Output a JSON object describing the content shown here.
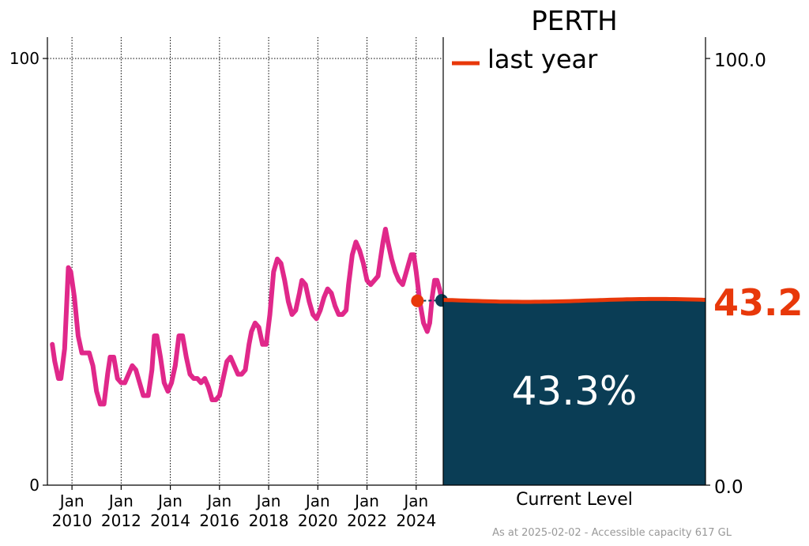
{
  "chart_data": [
    {
      "type": "line",
      "title": "",
      "xlabel": "",
      "ylabel": "",
      "ylim": [
        0,
        100
      ],
      "xlim": [
        2009.0,
        2025.1
      ],
      "y_ticks": [
        "0",
        "100"
      ],
      "x_tick_labels": [
        {
          "x": 2010,
          "top": "Jan",
          "bottom": "2010"
        },
        {
          "x": 2012,
          "top": "Jan",
          "bottom": "2012"
        },
        {
          "x": 2014,
          "top": "Jan",
          "bottom": "2014"
        },
        {
          "x": 2016,
          "top": "Jan",
          "bottom": "2016"
        },
        {
          "x": 2018,
          "top": "Jan",
          "bottom": "2018"
        },
        {
          "x": 2020,
          "top": "Jan",
          "bottom": "2020"
        },
        {
          "x": 2022,
          "top": "Jan",
          "bottom": "2022"
        },
        {
          "x": 2024,
          "top": "Jan",
          "bottom": "2024"
        }
      ],
      "series": [
        {
          "name": "storage",
          "color": "#e0288a",
          "points": [
            [
              2009.2,
              33
            ],
            [
              2009.3,
              29
            ],
            [
              2009.45,
              25
            ],
            [
              2009.55,
              25
            ],
            [
              2009.7,
              32
            ],
            [
              2009.78,
              42
            ],
            [
              2009.85,
              51
            ],
            [
              2009.95,
              50
            ],
            [
              2010.1,
              44
            ],
            [
              2010.25,
              35
            ],
            [
              2010.4,
              31
            ],
            [
              2010.55,
              31
            ],
            [
              2010.7,
              31
            ],
            [
              2010.85,
              28
            ],
            [
              2011.0,
              22
            ],
            [
              2011.15,
              19
            ],
            [
              2011.3,
              19
            ],
            [
              2011.45,
              26
            ],
            [
              2011.55,
              30
            ],
            [
              2011.7,
              30
            ],
            [
              2011.85,
              25
            ],
            [
              2012.0,
              24
            ],
            [
              2012.15,
              24
            ],
            [
              2012.3,
              26
            ],
            [
              2012.45,
              28
            ],
            [
              2012.6,
              27
            ],
            [
              2012.75,
              24
            ],
            [
              2012.9,
              21
            ],
            [
              2013.1,
              21
            ],
            [
              2013.25,
              27
            ],
            [
              2013.35,
              35
            ],
            [
              2013.45,
              35
            ],
            [
              2013.6,
              30
            ],
            [
              2013.75,
              24
            ],
            [
              2013.9,
              22
            ],
            [
              2014.05,
              24
            ],
            [
              2014.2,
              28
            ],
            [
              2014.35,
              35
            ],
            [
              2014.5,
              35
            ],
            [
              2014.65,
              30
            ],
            [
              2014.8,
              26
            ],
            [
              2014.95,
              25
            ],
            [
              2015.1,
              25
            ],
            [
              2015.25,
              24
            ],
            [
              2015.4,
              25
            ],
            [
              2015.55,
              23
            ],
            [
              2015.7,
              20
            ],
            [
              2015.85,
              20
            ],
            [
              2016.0,
              21
            ],
            [
              2016.15,
              25
            ],
            [
              2016.3,
              29
            ],
            [
              2016.45,
              30
            ],
            [
              2016.6,
              28
            ],
            [
              2016.75,
              26
            ],
            [
              2016.9,
              26
            ],
            [
              2017.05,
              27
            ],
            [
              2017.2,
              33
            ],
            [
              2017.3,
              36
            ],
            [
              2017.45,
              38
            ],
            [
              2017.6,
              37
            ],
            [
              2017.75,
              33
            ],
            [
              2017.9,
              33
            ],
            [
              2018.05,
              40
            ],
            [
              2018.2,
              50
            ],
            [
              2018.35,
              53
            ],
            [
              2018.5,
              52
            ],
            [
              2018.65,
              48
            ],
            [
              2018.8,
              43
            ],
            [
              2018.95,
              40
            ],
            [
              2019.1,
              41
            ],
            [
              2019.25,
              45
            ],
            [
              2019.35,
              48
            ],
            [
              2019.5,
              47
            ],
            [
              2019.65,
              43
            ],
            [
              2019.8,
              40
            ],
            [
              2019.95,
              39
            ],
            [
              2020.1,
              41
            ],
            [
              2020.25,
              44
            ],
            [
              2020.4,
              46
            ],
            [
              2020.55,
              45
            ],
            [
              2020.7,
              42
            ],
            [
              2020.85,
              40
            ],
            [
              2021.0,
              40
            ],
            [
              2021.15,
              41
            ],
            [
              2021.25,
              47
            ],
            [
              2021.4,
              54
            ],
            [
              2021.55,
              57
            ],
            [
              2021.7,
              55
            ],
            [
              2021.85,
              52
            ],
            [
              2022.0,
              48
            ],
            [
              2022.15,
              47
            ],
            [
              2022.3,
              48
            ],
            [
              2022.45,
              49
            ],
            [
              2022.55,
              53
            ],
            [
              2022.65,
              57
            ],
            [
              2022.75,
              60
            ],
            [
              2022.85,
              57
            ],
            [
              2023.0,
              53
            ],
            [
              2023.15,
              50
            ],
            [
              2023.3,
              48
            ],
            [
              2023.45,
              47
            ],
            [
              2023.55,
              49
            ],
            [
              2023.7,
              52
            ],
            [
              2023.8,
              54
            ],
            [
              2023.9,
              54
            ],
            [
              2024.0,
              50
            ],
            [
              2024.15,
              43
            ],
            [
              2024.3,
              38
            ],
            [
              2024.45,
              36
            ],
            [
              2024.55,
              38
            ],
            [
              2024.65,
              44
            ],
            [
              2024.75,
              48
            ],
            [
              2024.85,
              48
            ],
            [
              2024.95,
              46
            ],
            [
              2025.05,
              43.3
            ]
          ]
        }
      ],
      "markers": [
        {
          "name": "last-year-marker",
          "x": 2024.05,
          "y": 43.2,
          "color": "#e8380a"
        },
        {
          "name": "current-marker",
          "x": 2025.1,
          "y": 43.3,
          "color": "#0a3d55"
        }
      ]
    },
    {
      "type": "area",
      "title": "PERTH",
      "ylim": [
        0,
        100
      ],
      "xlabel": "Current Level",
      "current_level_percent": 43.3,
      "current_level_label": "43.3%",
      "last_year_value": 43.2,
      "last_year_label": "43.2",
      "legend_label": "last year",
      "right_axis_ticks": [
        "0.0",
        "100.0"
      ],
      "fill_color": "#0a3d55",
      "line_color": "#e8380a"
    }
  ],
  "footer": "As at 2025-02-02 - Accessible capacity 617 GL"
}
